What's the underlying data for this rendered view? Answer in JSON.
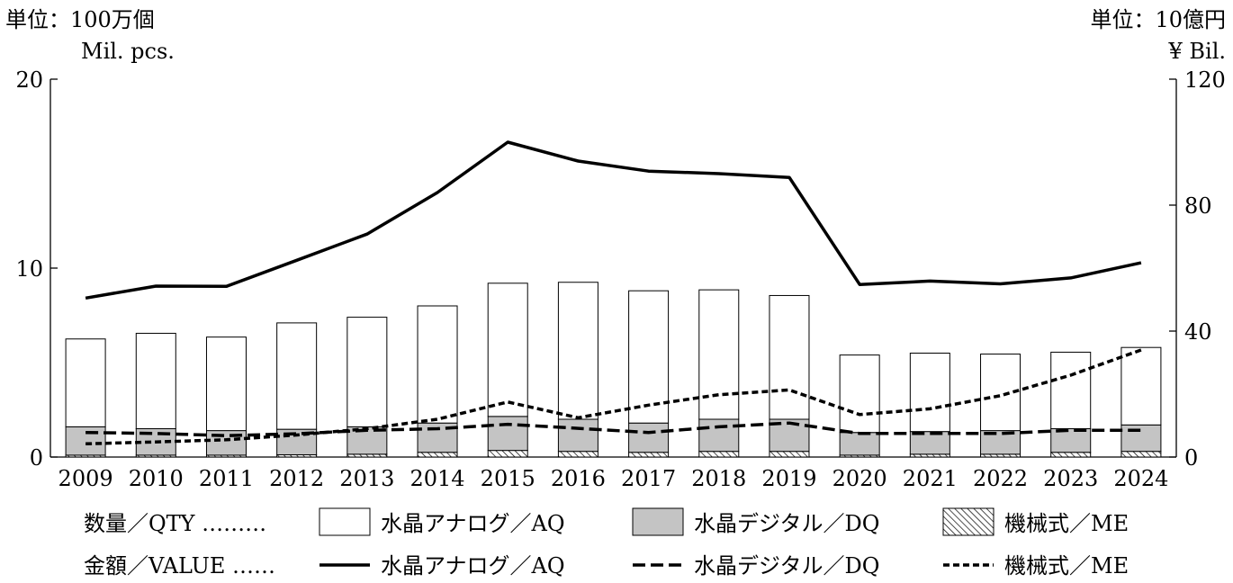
{
  "chart_data": {
    "type": "bar+line",
    "unit_left": "単位：100万個",
    "unit_left_en": "Mil. pcs.",
    "unit_right": "単位：10億円",
    "unit_right_en": "¥ Bil.",
    "y_left_ticks": [
      "0",
      "10",
      "20"
    ],
    "y_right_ticks": [
      "0",
      "40",
      "80",
      "120"
    ],
    "y_left_range": [
      0,
      20
    ],
    "y_right_range": [
      0,
      120
    ],
    "categories": [
      "2009",
      "2010",
      "2011",
      "2012",
      "2013",
      "2014",
      "2015",
      "2016",
      "2017",
      "2018",
      "2019",
      "2020",
      "2021",
      "2022",
      "2023",
      "2024"
    ],
    "bar_series": [
      {
        "name": "機械式／ME",
        "values": [
          0.1,
          0.1,
          0.1,
          0.12,
          0.15,
          0.25,
          0.35,
          0.3,
          0.25,
          0.3,
          0.3,
          0.1,
          0.15,
          0.15,
          0.25,
          0.3
        ]
      },
      {
        "name": "水晶デジタル／DQ",
        "values": [
          1.5,
          1.4,
          1.3,
          1.35,
          1.45,
          1.55,
          1.8,
          1.7,
          1.55,
          1.7,
          1.7,
          1.2,
          1.2,
          1.25,
          1.25,
          1.4
        ]
      },
      {
        "name": "水晶アナログ／AQ",
        "values": [
          4.65,
          5.05,
          4.95,
          5.63,
          5.8,
          6.2,
          7.05,
          7.25,
          7.0,
          6.85,
          6.55,
          4.1,
          4.15,
          4.05,
          4.05,
          4.1
        ]
      }
    ],
    "line_series": [
      {
        "name": "水晶アナログ／AQ",
        "style": "solid",
        "values": [
          50.5,
          54.3,
          54.2,
          62.5,
          70.8,
          84.0,
          100.0,
          94.0,
          90.8,
          90.0,
          88.8,
          54.8,
          55.9,
          55.0,
          56.9,
          61.7
        ]
      },
      {
        "name": "水晶デジタル／DQ",
        "style": "long-dash",
        "values": [
          7.8,
          7.5,
          6.8,
          7.4,
          8.5,
          9.0,
          10.4,
          9.1,
          7.8,
          9.6,
          10.8,
          7.5,
          7.5,
          7.5,
          8.5,
          8.5
        ]
      },
      {
        "name": "機械式／ME",
        "style": "short-dash",
        "values": [
          4.2,
          4.8,
          5.5,
          7.0,
          9.0,
          12.0,
          17.5,
          12.5,
          16.5,
          19.8,
          21.3,
          13.5,
          15.3,
          19.5,
          26.0,
          34.0
        ]
      }
    ]
  },
  "legend": {
    "qty_label": "数量／QTY ………",
    "value_label": "金額／VALUE ……",
    "items": [
      "水晶アナログ／AQ",
      "水晶デジタル／DQ",
      "機械式／ME"
    ]
  },
  "colors": {
    "aq_fill": "#ffffff",
    "dq_fill": "#c4c4c4",
    "line": "#000000"
  }
}
